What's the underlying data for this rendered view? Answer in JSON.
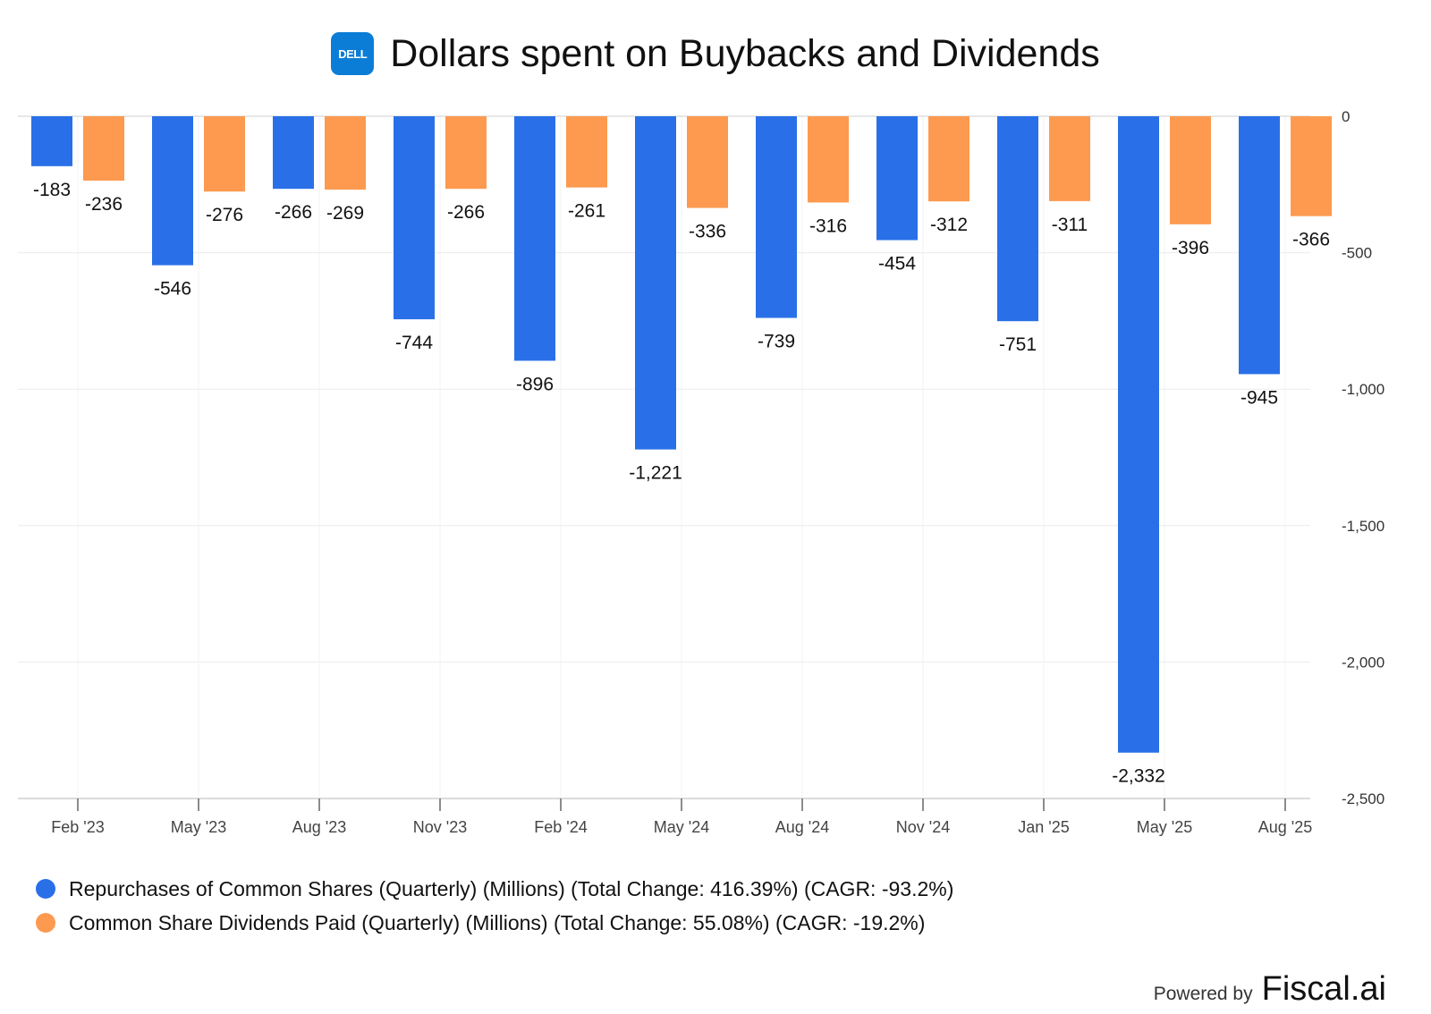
{
  "header": {
    "logo_text": "DELL",
    "title": "Dollars spent on Buybacks and Dividends"
  },
  "colors": {
    "series_1": "#2970e8",
    "series_2": "#fd9a4f",
    "logo_bg": "#0b7dd6",
    "grid": "#ececec",
    "axis": "#cfcfcf"
  },
  "chart_data": {
    "type": "bar",
    "title": "Dollars spent on Buybacks and Dividends",
    "xlabel": "",
    "ylabel": "",
    "categories": [
      "Feb '23",
      "May '23",
      "Aug '23",
      "Nov '23",
      "Feb '24",
      "May '24",
      "Aug '24",
      "Nov '24",
      "Jan '25",
      "May '25",
      "Aug '25"
    ],
    "series": [
      {
        "name": "Repurchases of Common Shares (Quarterly) (Millions) (Total Change: 416.39%) (CAGR: -93.2%)",
        "values": [
          -183,
          -546,
          -266,
          -744,
          -896,
          -1221,
          -739,
          -454,
          -751,
          -2332,
          -945
        ],
        "labels": [
          "-183",
          "-546",
          "-266",
          "-744",
          "-896",
          "-1,221",
          "-739",
          "-454",
          "-751",
          "-2,332",
          "-945"
        ]
      },
      {
        "name": "Common Share Dividends Paid (Quarterly) (Millions) (Total Change: 55.08%) (CAGR: -19.2%)",
        "values": [
          -236,
          -276,
          -269,
          -266,
          -261,
          -336,
          -316,
          -312,
          -311,
          -396,
          -366
        ],
        "labels": [
          "-236",
          "-276",
          "-269",
          "-266",
          "-261",
          "-336",
          "-316",
          "-312",
          "-311",
          "-396",
          "-366"
        ]
      }
    ],
    "ylim": [
      -2500,
      0
    ],
    "yticks": [
      0,
      -500,
      -1000,
      -1500,
      -2000,
      -2500
    ],
    "ytick_labels": [
      "0",
      "-500",
      "-1,000",
      "-1,500",
      "-2,000",
      "-2,500"
    ],
    "grid": true,
    "legend_position": "bottom-left"
  },
  "footer": {
    "powered_by": "Powered by",
    "brand": "Fiscal.ai"
  }
}
